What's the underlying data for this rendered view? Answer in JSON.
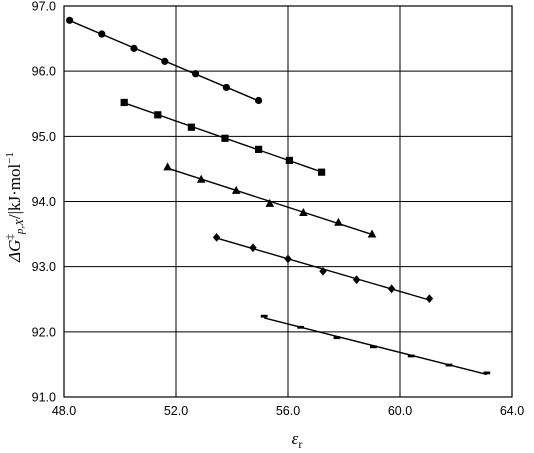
{
  "chart_data": {
    "type": "scatter",
    "xlabel_parts": [
      "ε",
      "r"
    ],
    "ylabel_parts": [
      "ΔG",
      "‡",
      "p,X",
      "/|kJ·mol",
      "−1"
    ],
    "xlim": [
      48.0,
      64.0
    ],
    "ylim": [
      91.0,
      97.0
    ],
    "xticks": [
      48.0,
      52.0,
      56.0,
      60.0,
      64.0
    ],
    "xtick_labels": [
      "48.0",
      "52.0",
      "56.0",
      "60.0",
      "64.0"
    ],
    "yticks": [
      91.0,
      92.0,
      93.0,
      94.0,
      95.0,
      96.0,
      97.0
    ],
    "ytick_labels": [
      "91.0",
      "92.0",
      "93.0",
      "94.0",
      "95.0",
      "96.0",
      "97.0"
    ],
    "grid": true,
    "series": [
      {
        "marker": "circle",
        "x": [
          48.2,
          49.35,
          50.5,
          51.6,
          52.7,
          53.8,
          54.95
        ],
        "y": [
          96.78,
          96.57,
          96.35,
          96.15,
          95.96,
          95.75,
          95.55
        ]
      },
      {
        "marker": "square",
        "x": [
          50.15,
          51.35,
          52.55,
          53.75,
          54.95,
          56.05,
          57.2
        ],
        "y": [
          95.52,
          95.33,
          95.14,
          94.97,
          94.8,
          94.63,
          94.45
        ]
      },
      {
        "marker": "triangle",
        "x": [
          51.7,
          52.9,
          54.15,
          55.35,
          56.55,
          57.8,
          59.0
        ],
        "y": [
          94.53,
          94.34,
          94.17,
          93.97,
          93.83,
          93.68,
          93.5
        ]
      },
      {
        "marker": "diamond",
        "x": [
          53.45,
          54.75,
          56.0,
          57.25,
          58.45,
          59.7,
          61.05
        ],
        "y": [
          93.45,
          93.29,
          93.12,
          92.93,
          92.8,
          92.66,
          92.51
        ]
      },
      {
        "marker": "dash",
        "x": [
          55.15,
          56.45,
          57.75,
          59.05,
          60.4,
          61.75,
          63.1
        ],
        "y": [
          92.24,
          92.07,
          91.91,
          91.77,
          91.63,
          91.49,
          91.37
        ]
      }
    ],
    "trendline_color": "#000000",
    "marker_color": "#000000",
    "grid_color": "#000000"
  }
}
